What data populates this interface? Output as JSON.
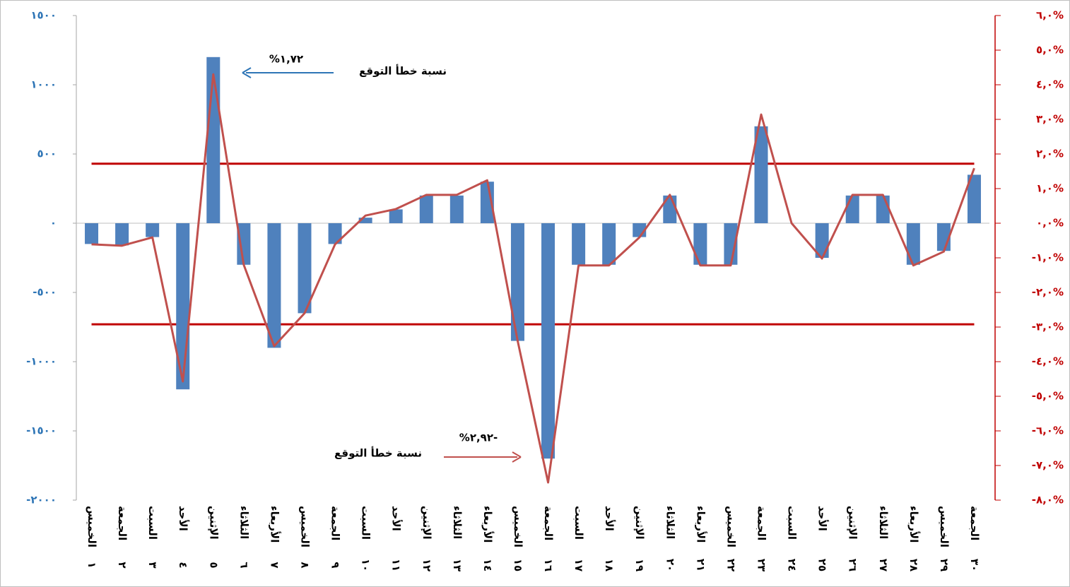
{
  "chart_data": {
    "type": "bar-line",
    "categories": [
      [
        "الخميس",
        "١"
      ],
      [
        "الجمعة",
        "٢"
      ],
      [
        "السبت",
        "٣"
      ],
      [
        "الأحد",
        "٤"
      ],
      [
        "الإثنين",
        "٥"
      ],
      [
        "الثلاثاء",
        "٦"
      ],
      [
        "الأربعاء",
        "٧"
      ],
      [
        "الخميس",
        "٨"
      ],
      [
        "الجمعة",
        "٩"
      ],
      [
        "السبت",
        "١٠"
      ],
      [
        "الأحد",
        "١١"
      ],
      [
        "الإثنين",
        "١٢"
      ],
      [
        "الثلاثاء",
        "١٣"
      ],
      [
        "الأربعاء",
        "١٤"
      ],
      [
        "الخميس",
        "١٥"
      ],
      [
        "الجمعة",
        "١٦"
      ],
      [
        "السبت",
        "١٧"
      ],
      [
        "الأحد",
        "١٨"
      ],
      [
        "الإثنين",
        "١٩"
      ],
      [
        "الثلاثاء",
        "٢٠"
      ],
      [
        "الأربعاء",
        "٢١"
      ],
      [
        "الخميس",
        "٢٢"
      ],
      [
        "الجمعة",
        "٢٣"
      ],
      [
        "السبت",
        "٢٤"
      ],
      [
        "الأحد",
        "٢٥"
      ],
      [
        "الإثنين",
        "٢٦"
      ],
      [
        "الثلاثاء",
        "٢٧"
      ],
      [
        "الأربعاء",
        "٢٨"
      ],
      [
        "الخميس",
        "٢٩"
      ],
      [
        "الجمعة",
        "٣٠"
      ]
    ],
    "series": [
      {
        "type": "bar",
        "color": "#4f81bd",
        "values": [
          -150,
          -160,
          -100,
          -1200,
          1200,
          -300,
          -900,
          -650,
          -150,
          40,
          100,
          200,
          200,
          300,
          -850,
          -1700,
          -300,
          -300,
          -100,
          200,
          -300,
          -300,
          700,
          0,
          -250,
          200,
          200,
          -300,
          -200,
          350
        ]
      },
      {
        "type": "line",
        "axis": "y2",
        "color": "#c0504d",
        "values": [
          -0.61,
          -0.65,
          -0.41,
          -4.57,
          4.3,
          -1.2,
          -3.55,
          -2.6,
          -0.61,
          0.22,
          0.41,
          0.82,
          0.82,
          1.24,
          -3.4,
          -7.49,
          -1.22,
          -1.22,
          -0.41,
          0.82,
          -1.22,
          -1.22,
          3.14,
          0,
          -1.02,
          0.82,
          0.82,
          -1.22,
          -0.82,
          1.59
        ]
      }
    ],
    "ylim": [
      -2000,
      1500
    ],
    "yticks": [
      {
        "value": 1500,
        "label": "١٥٠٠"
      },
      {
        "value": 1000,
        "label": "١٠٠٠"
      },
      {
        "value": 500,
        "label": "٥٠٠"
      },
      {
        "value": 0,
        "label": "٠"
      },
      {
        "value": -500,
        "label": "-٥٠٠"
      },
      {
        "value": -1000,
        "label": "-١٠٠٠"
      },
      {
        "value": -1500,
        "label": "-١٥٠٠"
      },
      {
        "value": -2000,
        "label": "-٢٠٠٠"
      }
    ],
    "y2lim": [
      -8,
      6
    ],
    "y2ticks": [
      {
        "value": 6,
        "label": "٦,٠%"
      },
      {
        "value": 5,
        "label": "٥,٠%"
      },
      {
        "value": 4,
        "label": "٤,٠%"
      },
      {
        "value": 3,
        "label": "٣,٠%"
      },
      {
        "value": 2,
        "label": "٢,٠%"
      },
      {
        "value": 1,
        "label": "١,٠%"
      },
      {
        "value": 0,
        "label": "٠,٠%"
      },
      {
        "value": -1,
        "label": "-١,٠%"
      },
      {
        "value": -2,
        "label": "-٢,٠%"
      },
      {
        "value": -3,
        "label": "-٣,٠%"
      },
      {
        "value": -4,
        "label": "-٤,٠%"
      },
      {
        "value": -5,
        "label": "-٥,٠%"
      },
      {
        "value": -6,
        "label": "-٦,٠%"
      },
      {
        "value": -7,
        "label": "-٧,٠%"
      },
      {
        "value": -8,
        "label": "-٨,٠%"
      }
    ],
    "grid": false,
    "reference_lines": [
      {
        "value": 1.72,
        "label": "١,٧٢%",
        "axis": "y2",
        "color": "#c00000",
        "label_color": "#000000"
      },
      {
        "value": -2.92,
        "label": "-٢,٩٢%",
        "axis": "y2",
        "color": "#c00000",
        "label_color": "#000000"
      }
    ],
    "annotations": [
      {
        "text": "نسبة خطأ التوقع",
        "arrow_color": "#2e75b6"
      },
      {
        "text": "نسبة خطأ التوقع",
        "arrow_color": "#c0504d"
      }
    ]
  }
}
